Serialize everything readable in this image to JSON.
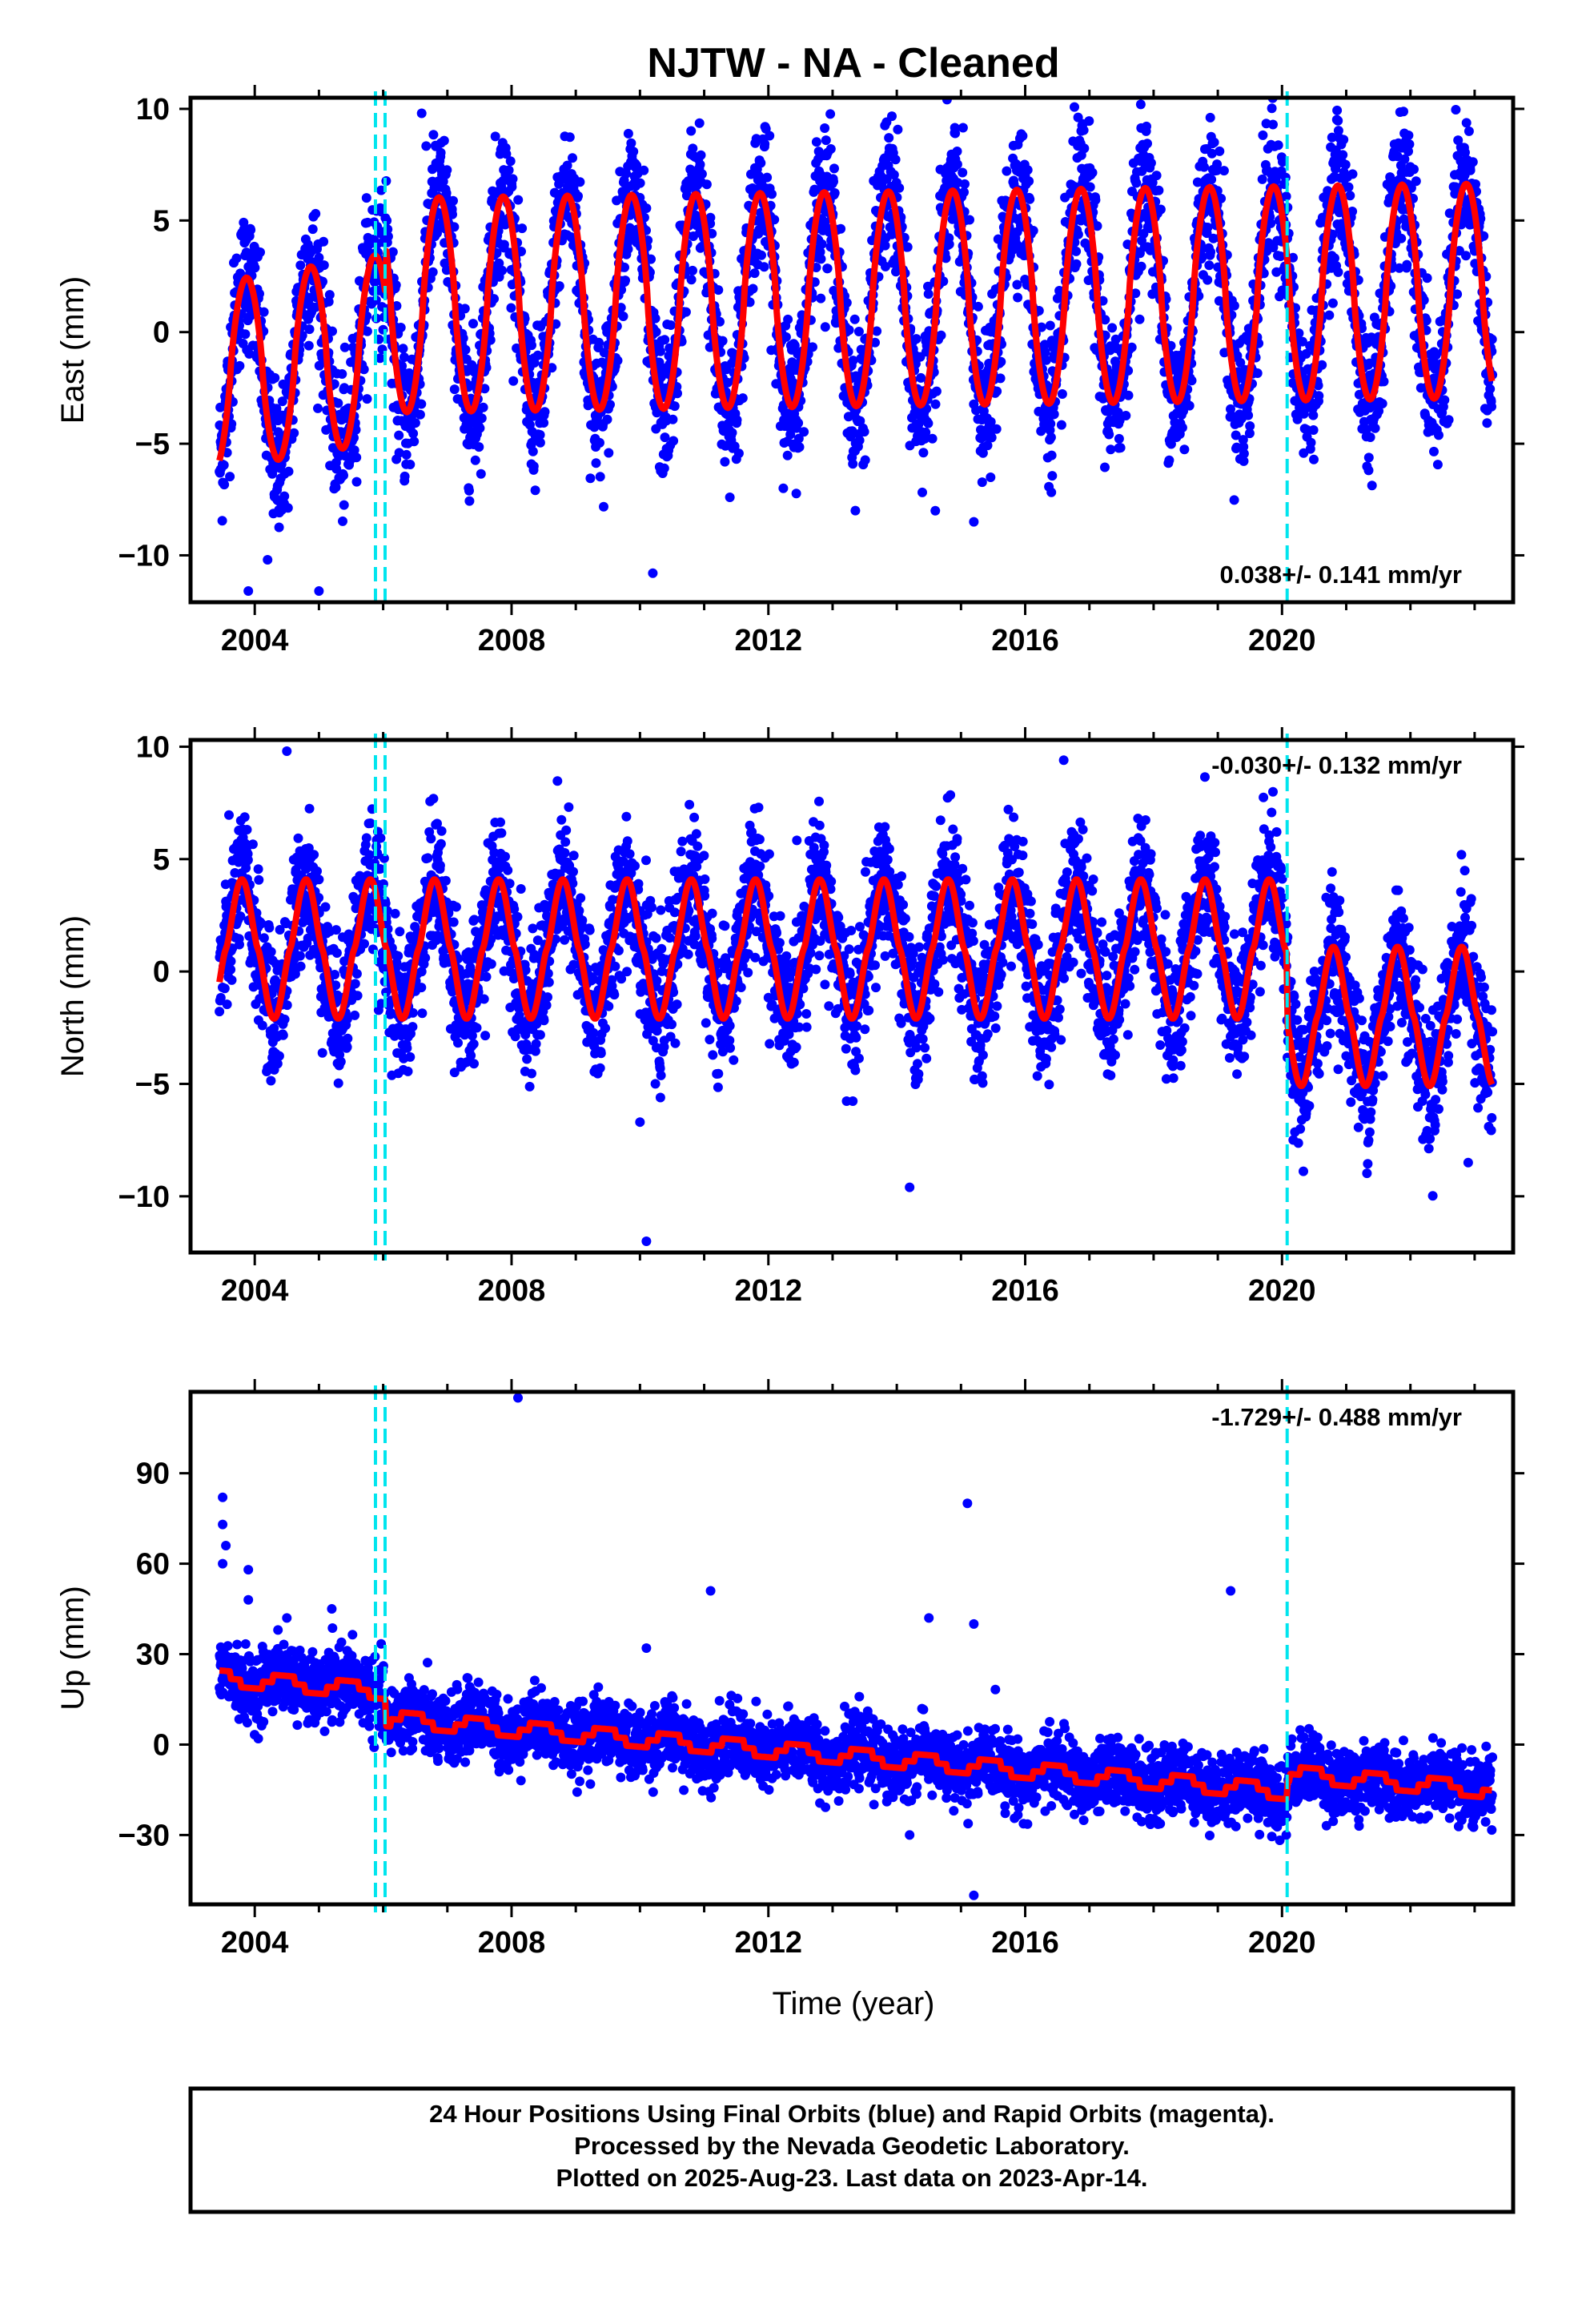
{
  "title": "NJTW  - NA - Cleaned",
  "xlabel": "Time (year)",
  "colors": {
    "final_points": "#0000ff",
    "model": "#ff0000",
    "steps": "#00e5ee",
    "frame": "#000000"
  },
  "steps": [
    2005.88,
    2006.03,
    2020.08
  ],
  "chart_data": [
    {
      "type": "scatter",
      "name": "east",
      "ylabel": "East (mm)",
      "rate": "0.038+/- 0.141 mm/yr",
      "xlim": [
        2003.0,
        2023.6
      ],
      "ylim": [
        -12.1,
        10.5
      ],
      "xticks": [
        "2004",
        "2008",
        "2012",
        "2016",
        "2020"
      ],
      "yticks": [
        "10",
        "5",
        "0",
        "−5",
        "−10"
      ],
      "model": {
        "amp": 4.2,
        "amp_growth": 0.02,
        "phase": 0.62,
        "trend": 0.038,
        "offset_early": -2.0,
        "early_amp": 4.4
      },
      "noise": 1.6,
      "outliers": [
        [
          2003.9,
          -11.6
        ],
        [
          2004.2,
          -10.2
        ],
        [
          2005.0,
          -11.6
        ],
        [
          2010.2,
          -10.8
        ],
        [
          2015.2,
          -8.5
        ],
        [
          2006.6,
          9.8
        ],
        [
          2017.8,
          10.2
        ],
        [
          2014.6,
          -8.0
        ],
        [
          2011.4,
          -7.4
        ]
      ]
    },
    {
      "type": "scatter",
      "name": "north",
      "ylabel": "North (mm)",
      "rate": "-0.030+/- 0.132 mm/yr",
      "xlim": [
        2003.0,
        2023.6
      ],
      "ylim": [
        -12.5,
        10.3
      ],
      "xticks": [
        "2004",
        "2008",
        "2012",
        "2016",
        "2020"
      ],
      "yticks": [
        "10",
        "5",
        "0",
        "−5",
        "−10"
      ],
      "model": {
        "amp": 3.1,
        "phase": 0.55,
        "offset_late": -2.4,
        "trend": -0.03
      },
      "noise": 1.5,
      "outliers": [
        [
          2004.5,
          9.8
        ],
        [
          2014.2,
          -9.6
        ],
        [
          2010.1,
          -12.0
        ],
        [
          2010.0,
          -6.7
        ],
        [
          2022.9,
          -8.5
        ],
        [
          2016.6,
          9.4
        ]
      ]
    },
    {
      "type": "scatter",
      "name": "up",
      "ylabel": "Up (mm)",
      "rate": "-1.729+/- 0.488 mm/yr",
      "xlim": [
        2003.0,
        2023.6
      ],
      "ylim": [
        -53,
        117
      ],
      "xticks": [
        "2004",
        "2008",
        "2012",
        "2016",
        "2020"
      ],
      "yticks": [
        "90",
        "60",
        "30",
        "0",
        "−30"
      ],
      "model": {
        "amp": 2.5,
        "start": 22,
        "step_2006": -9,
        "step_2020": 6,
        "trend": -1.729
      },
      "noise": 5.5,
      "outliers": [
        [
          2003.5,
          82
        ],
        [
          2003.5,
          73
        ],
        [
          2003.55,
          66
        ],
        [
          2003.5,
          60
        ],
        [
          2003.9,
          58
        ],
        [
          2003.9,
          48
        ],
        [
          2004.5,
          42
        ],
        [
          2005.2,
          45
        ],
        [
          2008.1,
          115
        ],
        [
          2011.1,
          51
        ],
        [
          2014.5,
          42
        ],
        [
          2015.1,
          80
        ],
        [
          2015.2,
          40
        ],
        [
          2014.2,
          -30
        ],
        [
          2015.2,
          -50
        ],
        [
          2019.2,
          51
        ],
        [
          2021.2,
          -27
        ],
        [
          2010.1,
          32
        ]
      ]
    }
  ],
  "footer": {
    "line1": "24 Hour Positions Using Final Orbits (blue) and Rapid Orbits (magenta).",
    "line2": "Processed by the Nevada Geodetic Laboratory.",
    "line3": "Plotted on 2025-Aug-23. Last data on 2023-Apr-14."
  }
}
